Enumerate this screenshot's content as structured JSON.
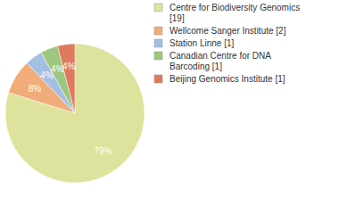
{
  "chart_data": {
    "type": "pie",
    "categories": [
      "Centre for Biodiversity Genomics [19]",
      "Wellcome Sanger Institute [2]",
      "Station Linne [1]",
      "Canadian Centre for DNA Barcoding [1]",
      "Beijing Genomics Institute [1]"
    ],
    "values": [
      79,
      8,
      4,
      4,
      4
    ],
    "value_labels": [
      "79%",
      "8%",
      "4%",
      "4%",
      "4%"
    ],
    "colors": [
      "#dde39c",
      "#f0ad7a",
      "#a3bfe3",
      "#9dc77e",
      "#e07a5e"
    ],
    "data_labels": true,
    "legend": "top-right"
  }
}
